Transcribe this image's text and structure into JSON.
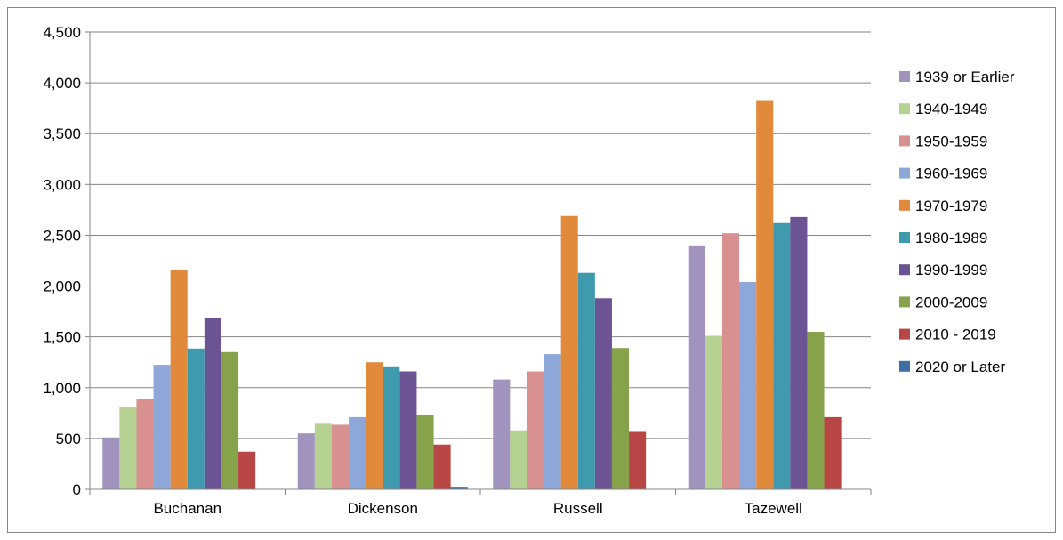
{
  "chart_data": {
    "type": "bar",
    "categories": [
      "Buchanan",
      "Dickenson",
      "Russell",
      "Tazewell"
    ],
    "ylim": [
      0,
      4500
    ],
    "yticks": [
      0,
      500,
      1000,
      1500,
      2000,
      2500,
      3000,
      3500,
      4000,
      4500
    ],
    "ytick_labels": [
      "0",
      "500",
      "1,000",
      "1,500",
      "2,000",
      "2,500",
      "3,000",
      "3,500",
      "4,000",
      "4,500"
    ],
    "grid": true,
    "legend_position": "right",
    "title": "",
    "xlabel": "",
    "ylabel": "",
    "series": [
      {
        "name": "1939 or Earlier",
        "color": "#a094bf",
        "values": [
          510,
          550,
          1080,
          2400
        ]
      },
      {
        "name": "1940-1949",
        "color": "#b6d293",
        "values": [
          810,
          645,
          580,
          1510
        ]
      },
      {
        "name": "1950-1959",
        "color": "#d89090",
        "values": [
          890,
          635,
          1160,
          2520
        ]
      },
      {
        "name": "1960-1969",
        "color": "#8da8d8",
        "values": [
          1225,
          710,
          1330,
          2040
        ]
      },
      {
        "name": "1970-1979",
        "color": "#e28a3c",
        "values": [
          2160,
          1250,
          2690,
          3830
        ]
      },
      {
        "name": "1980-1989",
        "color": "#3f9aae",
        "values": [
          1385,
          1210,
          2130,
          2620
        ]
      },
      {
        "name": "1990-1999",
        "color": "#6c5394",
        "values": [
          1690,
          1160,
          1880,
          2680
        ]
      },
      {
        "name": "2000-2009",
        "color": "#86a24a",
        "values": [
          1350,
          730,
          1390,
          1550
        ]
      },
      {
        "name": "2010 - 2019",
        "color": "#b84645",
        "values": [
          370,
          440,
          565,
          710
        ]
      },
      {
        "name": "2020 or Later",
        "color": "#3f6ea6",
        "values": [
          2,
          25,
          4,
          2
        ]
      }
    ]
  }
}
